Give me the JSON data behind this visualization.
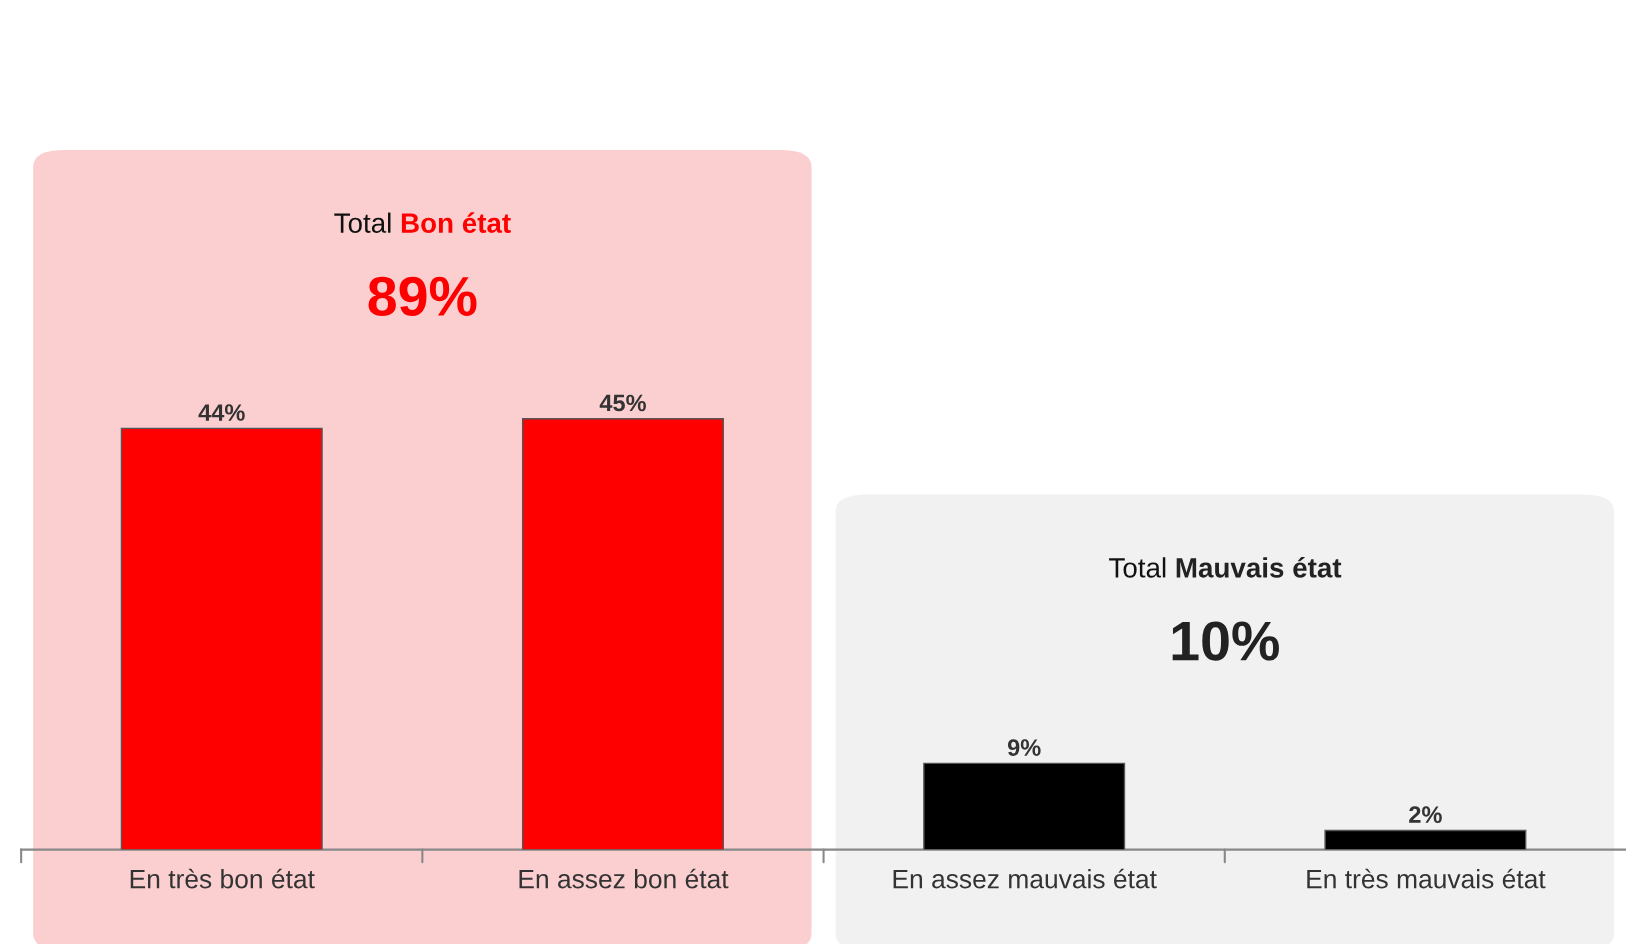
{
  "chart_data": {
    "type": "bar",
    "categories": [
      "En très bon état",
      "En assez bon état",
      "En assez mauvais état",
      "En très mauvais état"
    ],
    "values": [
      44,
      45,
      9,
      2
    ],
    "colors": [
      "#ff0000",
      "#ff0000",
      "#000000",
      "#000000"
    ],
    "value_labels": [
      "44%",
      "45%",
      "9%",
      "2%"
    ],
    "bands": [
      {
        "axis": "x",
        "from": "En très bon état",
        "to": "En assez bon état",
        "label": "Total Bon état",
        "color": "#fbcfd0"
      },
      {
        "axis": "x",
        "from": "En assez mauvais état",
        "to": "En très mauvais état",
        "label": "Total Mauvais état",
        "color": "#f1f1f1"
      }
    ],
    "annotations": [
      "89%",
      "10%"
    ],
    "grid": false,
    "legend": false
  }
}
